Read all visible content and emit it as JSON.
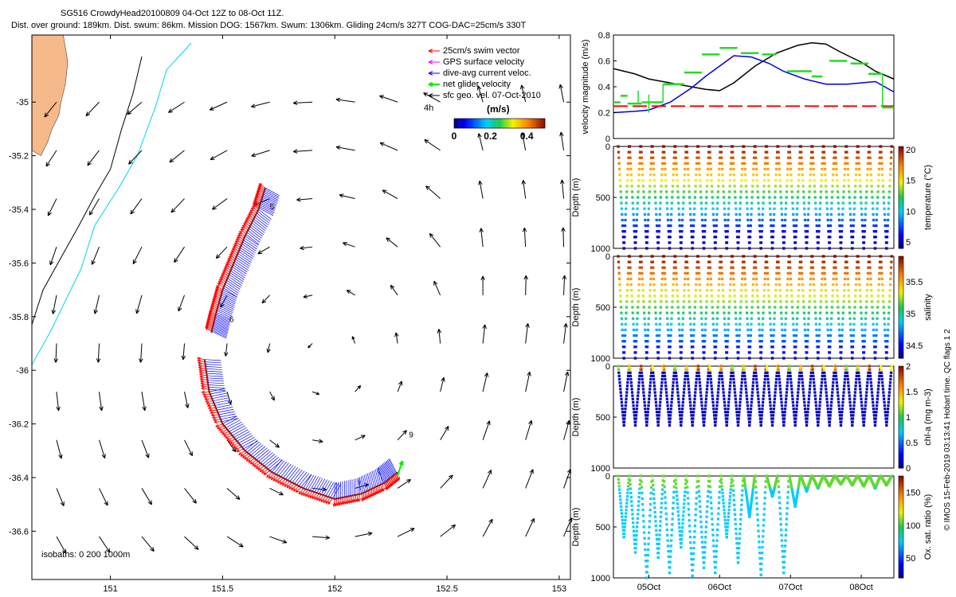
{
  "figure": {
    "title_line1": "SG516 CrowdyHead20100809 04-Oct 12Z to 08-Oct 11Z.",
    "title_line2": "Dist. over ground: 189km. Dist. swum: 86km. Mission DOG: 1567km. Swum: 1306km. Gliding 24cm/s 327T COG-DAC=25cm/s 330T",
    "credit": "© IMOS 15-Feb-2019 03:13:41 Hobart time. QC flags 1  2"
  },
  "chart_data": [
    {
      "id": "map",
      "type": "scatter",
      "xlim": [
        150.65,
        153.05
      ],
      "ylim": [
        -36.78,
        -34.75
      ],
      "x_ticks": [
        151,
        151.5,
        152,
        152.5,
        153
      ],
      "x_tick_labels": [
        "151",
        "151.5",
        "152",
        "152.5",
        "153"
      ],
      "y_ticks": [
        -35,
        -35.2,
        -35.4,
        -35.6,
        -35.8,
        -36,
        -36.2,
        -36.4,
        -36.6
      ],
      "y_tick_labels": [
        "-35",
        "-35.2",
        "-35.4",
        "-35.6",
        "-35.8",
        "-36",
        "-36.2",
        "-36.4",
        "-36.6"
      ],
      "legend": {
        "placement": "top-right",
        "items": [
          {
            "label": "25cm/s swim vector",
            "color": "#ff0000"
          },
          {
            "label": "GPS surface velocity",
            "color": "#ff00ff"
          },
          {
            "label": "dive-avg current veloc.",
            "color": "#0000ff"
          },
          {
            "label": "net glider velocity",
            "color": "#00ee00"
          },
          {
            "label": "sfc geo. vel. 07-Oct-2010",
            "color": "#000000"
          }
        ],
        "scale_label": "4h"
      },
      "colorbar": {
        "title": "(m/s)",
        "ticks": [
          "0",
          "0.2",
          "0.4"
        ],
        "range": [
          0,
          0.5
        ]
      },
      "isobaths_label": "isobaths: 0   200  1000m",
      "day_labels": [
        {
          "text": "5",
          "lon": 151.71,
          "lat": -35.4
        },
        {
          "text": "6",
          "lon": 151.53,
          "lat": -35.82
        },
        {
          "text": "9",
          "lon": 152.33,
          "lat": -36.25
        }
      ],
      "track": [
        [
          151.69,
          -35.32
        ],
        [
          151.66,
          -35.4
        ],
        [
          151.6,
          -35.5
        ],
        [
          151.55,
          -35.6
        ],
        [
          151.5,
          -35.7
        ],
        [
          151.47,
          -35.79
        ],
        [
          151.45,
          -35.86
        ],
        [
          151.42,
          -35.96
        ],
        [
          151.44,
          -36.08
        ],
        [
          151.5,
          -36.2
        ],
        [
          151.6,
          -36.3
        ],
        [
          151.72,
          -36.38
        ],
        [
          151.86,
          -36.44
        ],
        [
          152.0,
          -36.48
        ],
        [
          152.12,
          -36.46
        ],
        [
          152.22,
          -36.42
        ],
        [
          152.28,
          -36.38
        ]
      ],
      "coast_outer": [
        [
          150.65,
          -35.83
        ],
        [
          150.7,
          -35.7
        ],
        [
          150.78,
          -35.58
        ],
        [
          150.86,
          -35.46
        ],
        [
          150.93,
          -35.35
        ],
        [
          151.0,
          -35.25
        ],
        [
          151.05,
          -35.1
        ],
        [
          151.1,
          -34.97
        ],
        [
          151.14,
          -34.83
        ]
      ],
      "isobath_cyan": [
        [
          150.65,
          -35.98
        ],
        [
          150.73,
          -35.86
        ],
        [
          150.8,
          -35.74
        ],
        [
          150.87,
          -35.62
        ],
        [
          150.93,
          -35.46
        ],
        [
          151.03,
          -35.33
        ],
        [
          151.12,
          -35.2
        ],
        [
          151.2,
          -35.02
        ],
        [
          151.25,
          -34.88
        ],
        [
          151.36,
          -34.78
        ]
      ],
      "land": [
        [
          150.65,
          -34.75
        ],
        [
          150.79,
          -34.75
        ],
        [
          150.81,
          -34.85
        ],
        [
          150.8,
          -34.93
        ],
        [
          150.78,
          -35.0
        ],
        [
          150.77,
          -35.05
        ],
        [
          150.74,
          -35.1
        ],
        [
          150.72,
          -35.15
        ],
        [
          150.69,
          -35.2
        ],
        [
          150.65,
          -35.18
        ]
      ],
      "geo_velocity_grid": {
        "lon": [
          150.76,
          150.95,
          151.14,
          151.33,
          151.52,
          151.71,
          151.9,
          152.09,
          152.28,
          152.47,
          152.66,
          152.85,
          153.02
        ],
        "lat": [
          -35.0,
          -35.18,
          -35.36,
          -35.54,
          -35.72,
          -35.9,
          -36.08,
          -36.26,
          -36.44,
          -36.62
        ]
      }
    },
    {
      "id": "velocity",
      "type": "line",
      "ylabel": "velocity magnitude (m/s)",
      "ylim": [
        0,
        0.8
      ],
      "y_ticks": [
        "0",
        "0.2",
        "0.4",
        "0.6",
        "0.8"
      ],
      "x_range_days": [
        4.5,
        8.46
      ],
      "series": [
        {
          "color": "#000000",
          "x": [
            4.5,
            4.8,
            5.0,
            5.3,
            5.6,
            5.8,
            6.0,
            6.2,
            6.5,
            6.8,
            7.1,
            7.3,
            7.5,
            7.7,
            8.0,
            8.2,
            8.46
          ],
          "y": [
            0.54,
            0.5,
            0.46,
            0.43,
            0.4,
            0.38,
            0.37,
            0.43,
            0.56,
            0.66,
            0.72,
            0.74,
            0.73,
            0.67,
            0.59,
            0.52,
            0.46
          ]
        },
        {
          "color": "#0000dd",
          "x": [
            4.5,
            4.8,
            5.0,
            5.3,
            5.6,
            5.8,
            6.0,
            6.2,
            6.45,
            6.7,
            6.9,
            7.2,
            7.5,
            7.8,
            8.0,
            8.2,
            8.46
          ],
          "y": [
            0.2,
            0.21,
            0.22,
            0.28,
            0.39,
            0.48,
            0.56,
            0.64,
            0.63,
            0.58,
            0.52,
            0.46,
            0.42,
            0.42,
            0.43,
            0.44,
            0.36
          ]
        },
        {
          "color": "#ff0000",
          "dashed": true,
          "x": [
            4.5,
            8.46
          ],
          "y": [
            0.25,
            0.25
          ]
        },
        {
          "color": "#22dd22",
          "steps": [
            [
              4.5,
              4.6,
              0.28
            ],
            [
              4.6,
              4.7,
              0.33
            ],
            [
              4.7,
              4.9,
              0.27
            ],
            [
              4.9,
              5.2,
              0.28
            ],
            [
              5.2,
              5.5,
              0.42
            ],
            [
              5.5,
              5.75,
              0.51
            ],
            [
              5.75,
              6.0,
              0.65
            ],
            [
              6.0,
              6.25,
              0.7
            ],
            [
              6.3,
              6.55,
              0.66
            ],
            [
              6.6,
              6.8,
              0.65
            ],
            [
              6.95,
              7.3,
              0.52
            ],
            [
              7.3,
              7.45,
              0.48
            ],
            [
              7.55,
              7.8,
              0.6
            ],
            [
              7.85,
              8.1,
              0.58
            ],
            [
              8.1,
              8.3,
              0.5
            ],
            [
              8.3,
              8.46,
              0.24
            ]
          ]
        }
      ]
    },
    {
      "id": "temperature",
      "type": "scatter",
      "ylabel": "Depth (m)",
      "clabel": "temperature (°C)",
      "y_ticks": [
        "0",
        "500",
        "1000"
      ],
      "cticks": [
        "5",
        "10",
        "15",
        "20"
      ],
      "crange": [
        4,
        20.5
      ],
      "dives": 24,
      "max_depth": 1000
    },
    {
      "id": "salinity",
      "type": "scatter",
      "ylabel": "Depth (m)",
      "clabel": "salinity",
      "y_ticks": [
        "0",
        "500",
        "1000"
      ],
      "cticks": [
        "34.5",
        "35",
        "35.5"
      ],
      "crange": [
        34.3,
        35.9
      ],
      "dives": 24,
      "max_depth": 1000
    },
    {
      "id": "chla",
      "type": "scatter",
      "ylabel": "Depth (m)",
      "clabel": "chl-a (mg m-3)",
      "y_ticks": [
        "0",
        "500",
        "1000"
      ],
      "cticks": [
        "0",
        "0.5",
        "1",
        "1.5",
        "2"
      ],
      "crange": [
        0,
        2
      ],
      "dives": 24,
      "max_depth": 580
    },
    {
      "id": "oxygen",
      "type": "scatter",
      "ylabel": "Depth (m)",
      "clabel": "Ox. sat. ratio (%)",
      "y_ticks": [
        "0",
        "500",
        "1000"
      ],
      "cticks": [
        "50",
        "100",
        "150"
      ],
      "crange": [
        20,
        175
      ],
      "x_tick_labels": [
        "05Oct",
        "06Oct",
        "07Oct",
        "08Oct"
      ],
      "x_ticks_days": [
        5,
        6,
        7,
        8
      ],
      "dives": 24,
      "max_depth": 1000
    }
  ]
}
